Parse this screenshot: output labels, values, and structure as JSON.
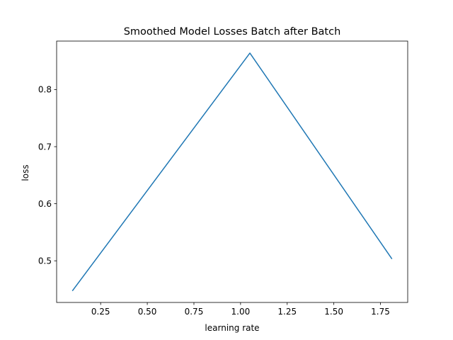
{
  "chart_data": {
    "type": "line",
    "title": "Smoothed Model Losses Batch after Batch",
    "xlabel": "learning rate",
    "ylabel": "loss",
    "xlim": [
      0.014,
      1.896
    ],
    "ylim": [
      0.427,
      0.885
    ],
    "xticks": [
      0.25,
      0.5,
      0.75,
      1.0,
      1.25,
      1.5,
      1.75
    ],
    "xtick_labels": [
      "0.25",
      "0.50",
      "0.75",
      "1.00",
      "1.25",
      "1.50",
      "1.75"
    ],
    "yticks": [
      0.5,
      0.6,
      0.7,
      0.8
    ],
    "ytick_labels": [
      "0.5",
      "0.6",
      "0.7",
      "0.8"
    ],
    "grid": false,
    "series": [
      {
        "color": "#1f77b4",
        "x": [
          0.1,
          1.05,
          1.81
        ],
        "y": [
          0.448,
          0.864,
          0.504
        ]
      }
    ]
  }
}
